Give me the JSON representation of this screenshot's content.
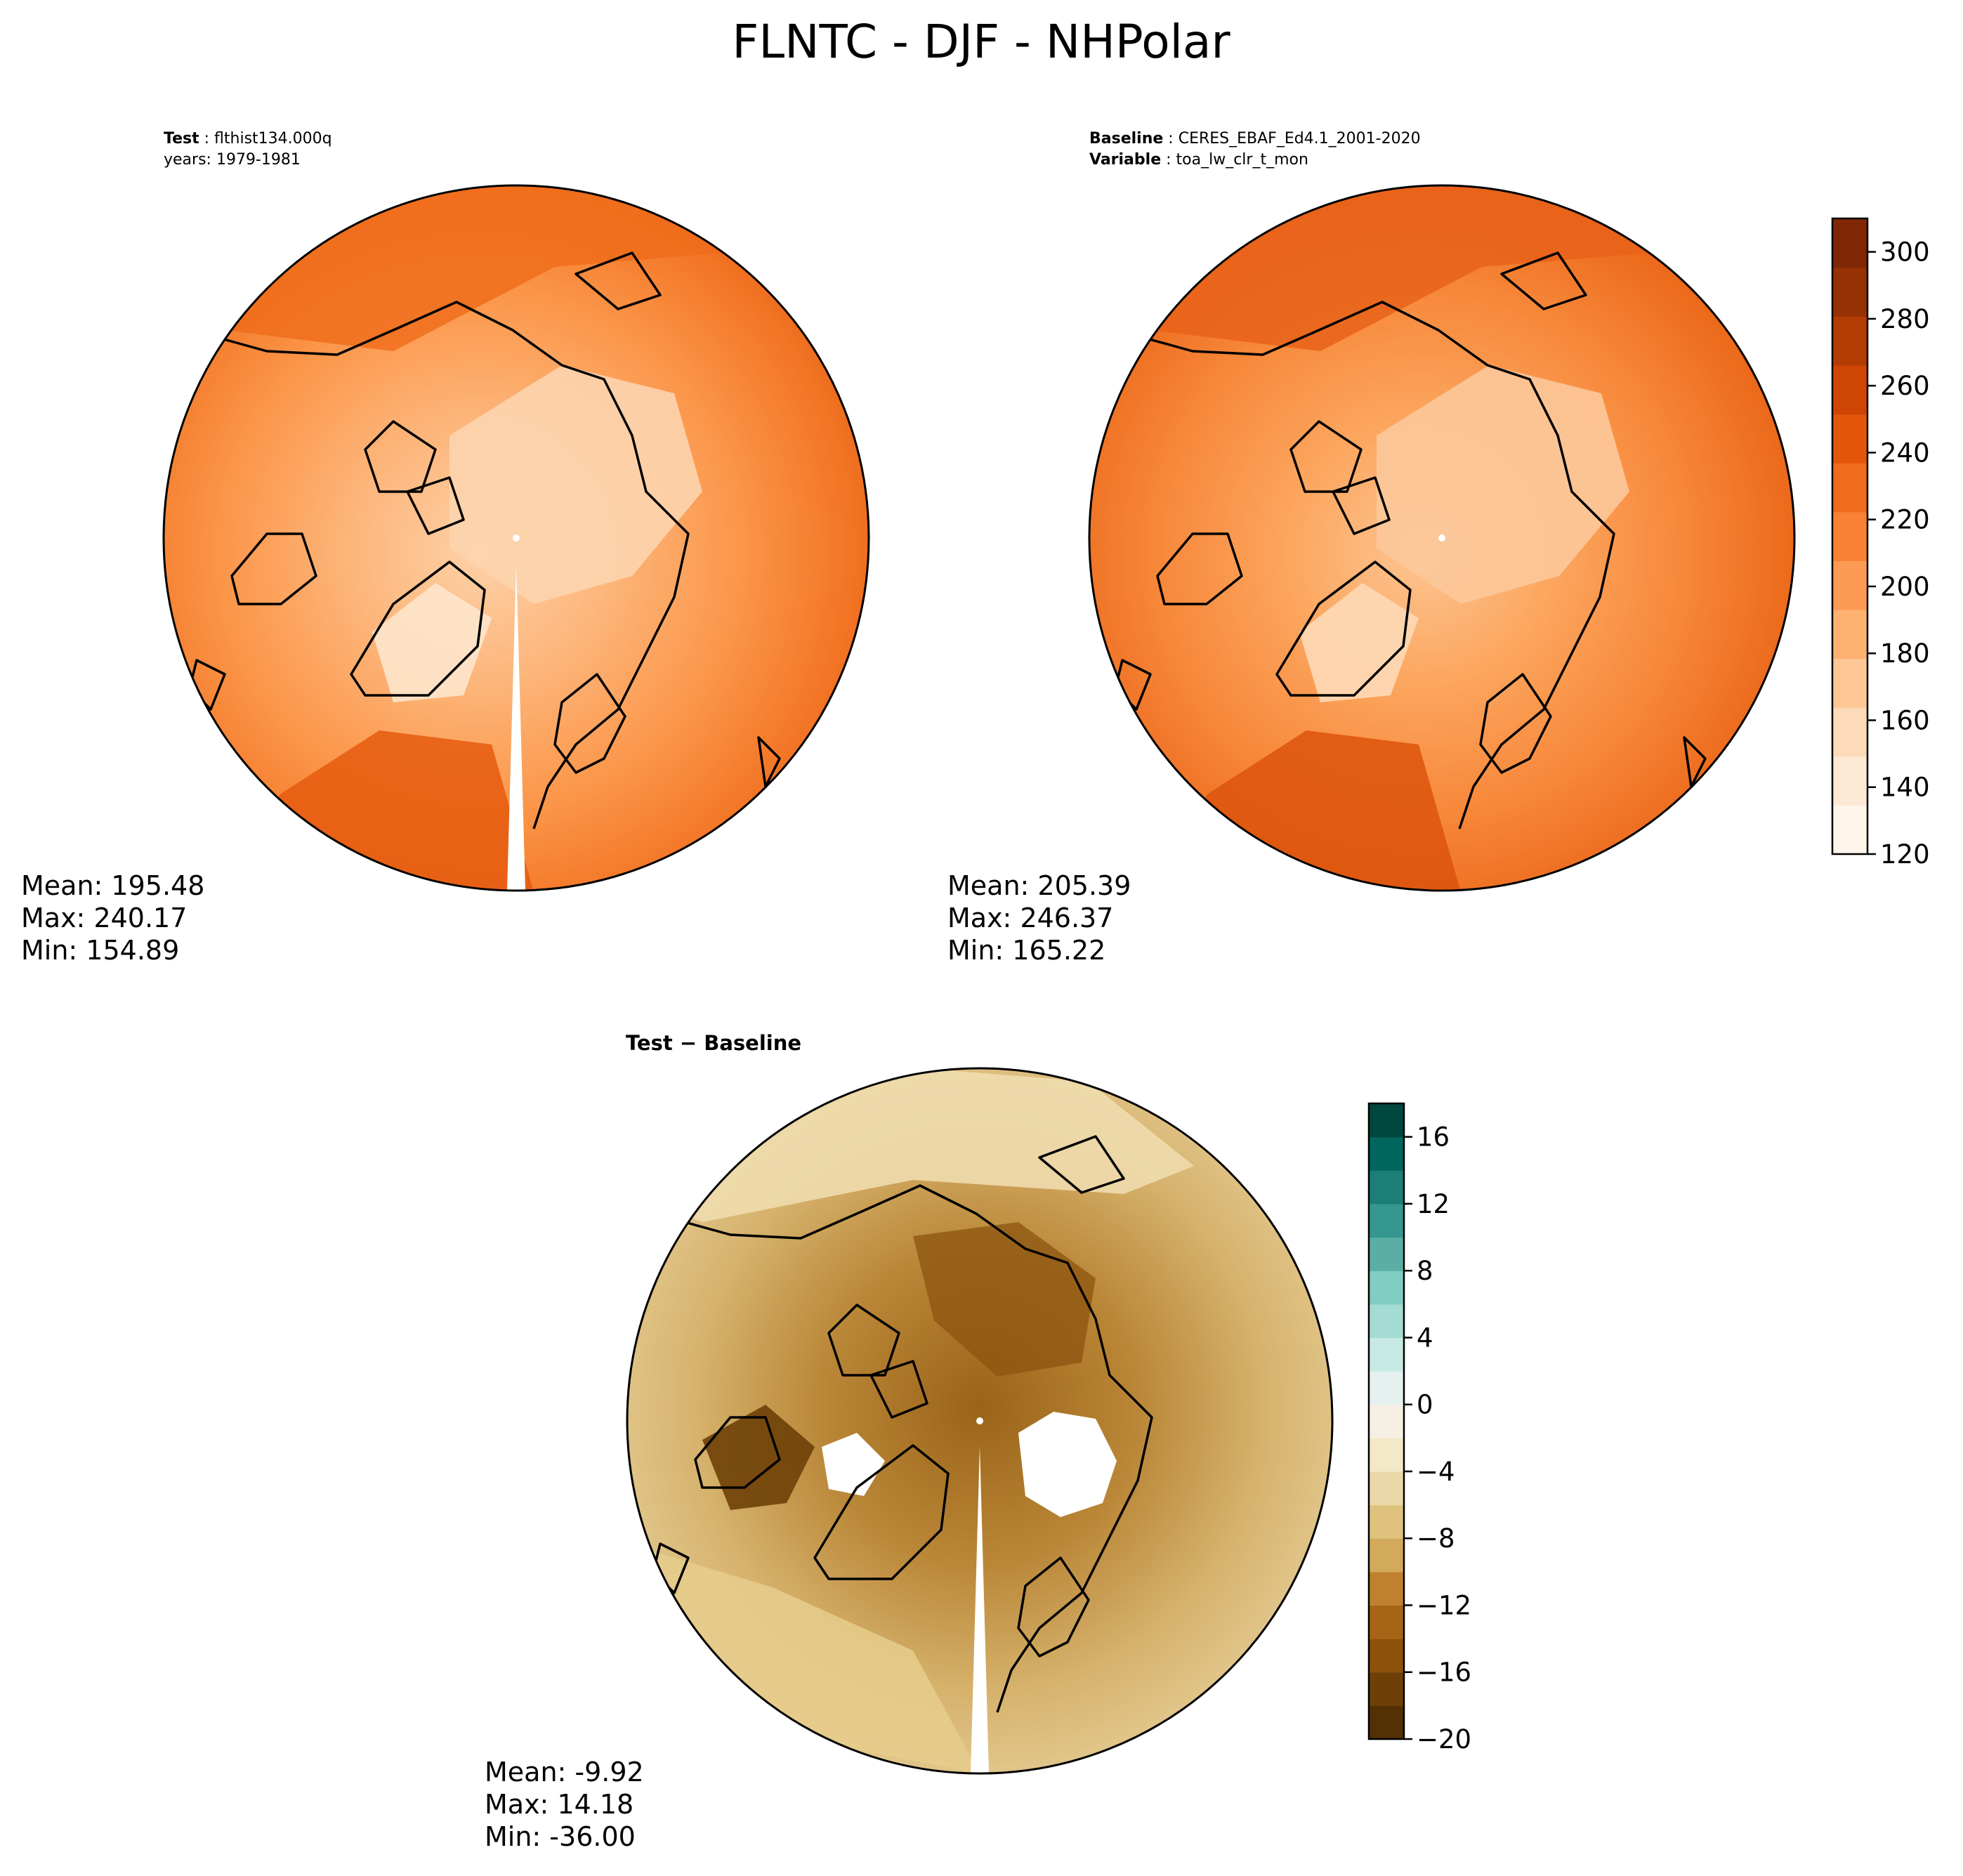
{
  "figure": {
    "title": "FLNTC - DJF - NHPolar"
  },
  "panels": {
    "test": {
      "label_key": "Test",
      "label_value": "flthist134.000q",
      "line2": "years: 1979-1981",
      "stats": {
        "mean": "Mean: 195.48",
        "max": "Max: 240.17",
        "min": "Min: 154.89"
      }
    },
    "baseline": {
      "label_key": "Baseline",
      "label_value": "CERES_EBAF_Ed4.1_2001-2020",
      "line2_key": "Variable",
      "line2_value": "toa_lw_clr_t_mon",
      "stats": {
        "mean": "Mean: 205.39",
        "max": "Max: 246.37",
        "min": "Min: 165.22"
      }
    },
    "diff": {
      "title": "Test − Baseline",
      "stats": {
        "mean": "Mean: -9.92",
        "max": "Max: 14.18",
        "min": "Min: -36.00"
      }
    }
  },
  "chart_data": [
    {
      "type": "heatmap",
      "title": "Test",
      "projection": "north-polar-stereographic",
      "colormap": "Oranges",
      "mean": 195.48,
      "max": 240.17,
      "min": 154.89,
      "clim": [
        120,
        310
      ]
    },
    {
      "type": "heatmap",
      "title": "Baseline",
      "projection": "north-polar-stereographic",
      "colormap": "Oranges",
      "mean": 205.39,
      "max": 246.37,
      "min": 165.22,
      "clim": [
        120,
        310
      ]
    },
    {
      "type": "heatmap",
      "title": "Test − Baseline",
      "projection": "north-polar-stereographic",
      "colormap": "BrBG",
      "mean": -9.92,
      "max": 14.18,
      "min": -36.0,
      "clim": [
        -20,
        18
      ]
    }
  ],
  "colorbars": {
    "top": {
      "ticks": [
        "120",
        "140",
        "160",
        "180",
        "200",
        "220",
        "240",
        "260",
        "280",
        "300"
      ],
      "tick_values": [
        120,
        140,
        160,
        180,
        200,
        220,
        240,
        260,
        280,
        300
      ],
      "range": [
        120,
        310
      ],
      "colors": [
        "#fff5eb",
        "#fee9d4",
        "#fddbb8",
        "#fdc896",
        "#fdb272",
        "#fd9a53",
        "#f98134",
        "#f06b1d",
        "#e3560c",
        "#cf4503",
        "#b33c03",
        "#953103",
        "#7f2704"
      ]
    },
    "bottom": {
      "ticks": [
        "−20",
        "−16",
        "−12",
        "−8",
        "−4",
        "0",
        "4",
        "8",
        "12",
        "16"
      ],
      "tick_values": [
        -20,
        -16,
        -12,
        -8,
        -4,
        0,
        4,
        8,
        12,
        16
      ],
      "range": [
        -20,
        18
      ],
      "colors": [
        "#543005",
        "#6e4008",
        "#8c510a",
        "#a66516",
        "#bf812d",
        "#d3a95c",
        "#dfc27d",
        "#ebd8a8",
        "#f3e8c8",
        "#f5f0e3",
        "#e5f1ef",
        "#c7eae5",
        "#a4dbd2",
        "#80cdc1",
        "#5aafa5",
        "#35978f",
        "#1c7e76",
        "#01665e",
        "#00473e"
      ]
    }
  },
  "colors": {
    "land_outline": "#000000",
    "missing": "#ffffff"
  }
}
